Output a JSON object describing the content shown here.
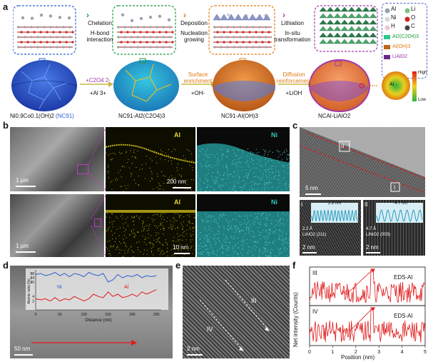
{
  "panels": {
    "a": "a",
    "b": "b",
    "c": "c",
    "d": "d",
    "e": "e",
    "f": "f"
  },
  "a": {
    "steps": [
      {
        "title": "Chelation",
        "sub1": "H-bond",
        "sub2": "interaction"
      },
      {
        "title": "Deposition",
        "sub1": "Nucleation",
        "sub2": "growing"
      },
      {
        "title": "Lithiation",
        "sub1": "In-situ",
        "sub2": "transformation"
      }
    ],
    "arrows": [
      {
        "top": "+C2O4 2-",
        "bottom": "+Al 3+"
      },
      {
        "top1": "Surface",
        "top2": "enrichment",
        "bottom": "+OH-"
      },
      {
        "top1": "Diffusion",
        "top2": "reinforcement",
        "bottom": "+LiOH"
      }
    ],
    "particles": [
      "Ni0.9Co0.1(OH)2",
      "(NC91)",
      "NC91-Al2(C2O4)3",
      "NC91-Al(OH)3",
      "NCAl-LiAlO2"
    ],
    "legend": {
      "atoms": [
        "Al",
        "Li",
        "Ni",
        "O",
        "H",
        "C"
      ],
      "phases": [
        "Al2(C2O4)3",
        "Al(OH)3",
        "LiAlO2"
      ]
    },
    "gradient": {
      "high": "High",
      "low": "Low",
      "center": "Al"
    }
  },
  "b": {
    "sem_scale": "1 μm",
    "map_top_label": "Al",
    "map_top_label2": "Ni",
    "map_top_scale": "200 nm",
    "sem2_scale": "1 μm",
    "map_bottom_label": "Al",
    "map_bottom_label2": "Ni",
    "map_bottom_scale": "10 nm"
  },
  "c": {
    "scale": "5 nm",
    "region1": "II",
    "region2": "I",
    "inset1": {
      "roman": "I",
      "d": "2.2 nm",
      "phase": "2.2 Å",
      "hkl": "LiAlO2 (211)",
      "scale": "2 nm"
    },
    "inset2": {
      "roman": "II",
      "d": "4.7 nm",
      "phase": "4.7 Å",
      "hkl": "LiNiO2 (003)",
      "scale": "2 nm"
    }
  },
  "d": {
    "ylabel": "Atomic ratio (%)",
    "xlabel": "Distance (nm)",
    "scale": "50 nm",
    "series": [
      "Ni",
      "Al"
    ]
  },
  "e": {
    "scale": "2 nm",
    "label1": "III",
    "label2": "IV"
  },
  "f": {
    "ylabel": "Net intensity (Counts)",
    "xlabel": "Position (nm)",
    "top_roman": "III",
    "top_title": "EDS-Al",
    "top_peak": "Al",
    "bottom_roman": "IV",
    "bottom_title": "EDS-Al",
    "bottom_peak": "Al"
  },
  "chart_data": [
    {
      "type": "line",
      "title": "",
      "xlabel": "Distance (nm)",
      "ylabel": "Atomic ratio (%)",
      "xlim": [
        0,
        260
      ],
      "x": [
        0,
        10,
        20,
        30,
        40,
        50,
        60,
        70,
        80,
        90,
        100,
        110,
        120,
        130,
        140,
        150,
        160,
        170,
        180,
        190,
        200,
        210,
        220,
        230,
        240,
        250
      ],
      "series": [
        {
          "name": "Ni",
          "values": [
            87,
            88,
            86,
            87,
            89,
            86,
            88,
            85,
            88,
            87,
            85,
            89,
            87,
            86,
            88,
            80,
            82,
            87,
            84,
            86,
            85,
            87,
            84,
            86,
            85,
            86
          ]
        },
        {
          "name": "Al",
          "values": [
            3,
            2.5,
            3,
            2,
            3.5,
            2,
            3,
            2.5,
            4,
            3,
            2,
            3,
            5,
            4,
            3.5,
            6,
            4,
            5,
            3.5,
            4,
            5,
            4,
            6,
            5,
            6,
            7
          ]
        }
      ],
      "y_ticks": [
        2,
        4,
        80,
        84,
        88
      ]
    },
    {
      "type": "line",
      "title": "EDS-Al",
      "xlabel": "Position (nm)",
      "xlim": [
        0,
        5
      ],
      "series": [
        {
          "name": "III",
          "peak_x": 2.7
        }
      ]
    },
    {
      "type": "line",
      "title": "EDS-Al",
      "xlabel": "Position (nm)",
      "xlim": [
        0,
        5
      ],
      "x_ticks": [
        0,
        1,
        2,
        3,
        4,
        5
      ],
      "series": [
        {
          "name": "IV",
          "peak_x": 2.7
        }
      ]
    }
  ],
  "colors": {
    "orange": "#e07a10",
    "purple": "#a03aa8",
    "green": "#1a9a3a",
    "blue": "#2f5fd0",
    "red": "#e01818",
    "cyan": "#30c6c0",
    "yellow": "#e8d830"
  }
}
